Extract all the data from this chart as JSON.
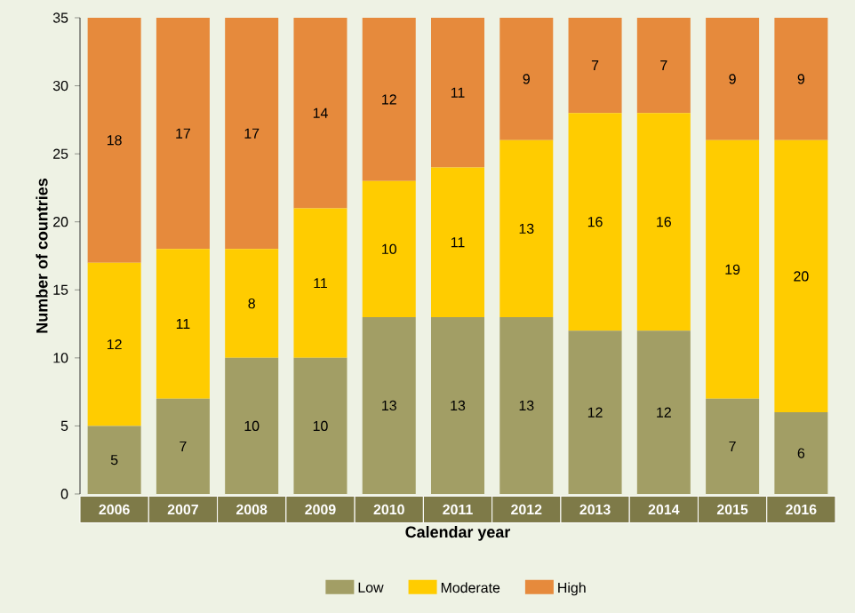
{
  "chart_data": {
    "type": "bar",
    "stacked": true,
    "xlabel": "Calendar year",
    "ylabel": "Number of countries",
    "categories": [
      "2006",
      "2007",
      "2008",
      "2009",
      "2010",
      "2011",
      "2012",
      "2013",
      "2014",
      "2015",
      "2016"
    ],
    "series": [
      {
        "name": "Low",
        "color": "#a29e65",
        "values": [
          5,
          7,
          10,
          10,
          13,
          13,
          13,
          12,
          12,
          7,
          6
        ]
      },
      {
        "name": "Moderate",
        "color": "#ffcc00",
        "values": [
          12,
          11,
          8,
          11,
          10,
          11,
          13,
          16,
          16,
          19,
          20
        ]
      },
      {
        "name": "High",
        "color": "#e68a3c",
        "values": [
          18,
          17,
          17,
          14,
          12,
          11,
          9,
          7,
          7,
          9,
          9
        ]
      }
    ],
    "ylim": [
      0,
      35
    ],
    "yticks": [
      0,
      5,
      10,
      15,
      20,
      25,
      30,
      35
    ],
    "data_labels": true,
    "legend": "bottom",
    "grid": false
  }
}
